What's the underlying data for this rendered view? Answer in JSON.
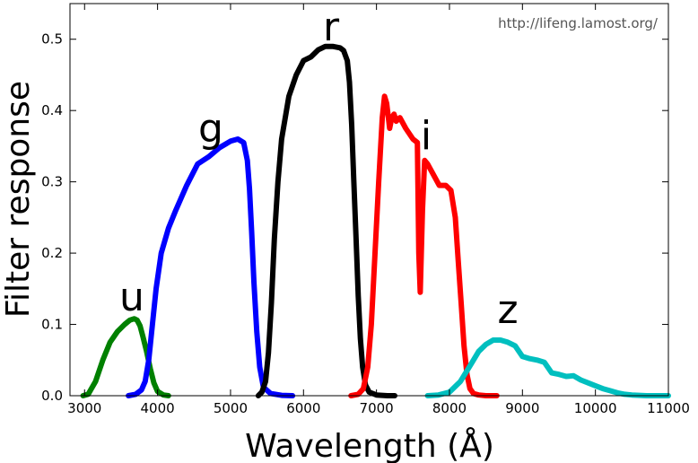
{
  "chart_data": {
    "type": "line",
    "title": "",
    "watermark": "http://lifeng.lamost.org/",
    "xlabel": "Wavelength (Å)",
    "ylabel": "Filter response",
    "xlim": [
      2800,
      11000
    ],
    "ylim": [
      0,
      0.55
    ],
    "x_ticks": [
      3000,
      4000,
      5000,
      6000,
      7000,
      8000,
      9000,
      10000,
      11000
    ],
    "y_ticks": [
      0.0,
      0.1,
      0.2,
      0.3,
      0.4,
      0.5
    ],
    "grid": false,
    "series": [
      {
        "name": "u",
        "color": "#008000",
        "x": [
          2980,
          3050,
          3150,
          3250,
          3350,
          3450,
          3550,
          3620,
          3680,
          3720,
          3760,
          3800,
          3850,
          3900,
          3950,
          4000,
          4080,
          4150
        ],
        "y": [
          0.0,
          0.002,
          0.02,
          0.05,
          0.075,
          0.09,
          0.1,
          0.106,
          0.108,
          0.106,
          0.098,
          0.083,
          0.062,
          0.038,
          0.018,
          0.006,
          0.001,
          0.0
        ]
      },
      {
        "name": "g",
        "color": "#0000ff",
        "x": [
          3600,
          3700,
          3780,
          3830,
          3880,
          3930,
          3980,
          4050,
          4150,
          4250,
          4400,
          4550,
          4700,
          4850,
          5000,
          5100,
          5180,
          5230,
          5260,
          5290,
          5320,
          5360,
          5400,
          5450,
          5550,
          5700,
          5850
        ],
        "y": [
          0.0,
          0.002,
          0.008,
          0.02,
          0.05,
          0.1,
          0.15,
          0.2,
          0.235,
          0.26,
          0.295,
          0.325,
          0.335,
          0.348,
          0.357,
          0.36,
          0.355,
          0.33,
          0.29,
          0.23,
          0.16,
          0.09,
          0.04,
          0.012,
          0.003,
          0.0005,
          0.0
        ]
      },
      {
        "name": "r",
        "color": "#000000",
        "x": [
          5380,
          5430,
          5480,
          5520,
          5560,
          5600,
          5650,
          5700,
          5800,
          5900,
          6000,
          6100,
          6200,
          6300,
          6400,
          6500,
          6550,
          6600,
          6630,
          6660,
          6690,
          6720,
          6750,
          6780,
          6810,
          6850,
          6900,
          7000,
          7150,
          7250
        ],
        "y": [
          0.0,
          0.005,
          0.02,
          0.06,
          0.13,
          0.22,
          0.3,
          0.36,
          0.42,
          0.45,
          0.47,
          0.475,
          0.485,
          0.49,
          0.49,
          0.488,
          0.484,
          0.47,
          0.44,
          0.38,
          0.3,
          0.22,
          0.14,
          0.08,
          0.04,
          0.015,
          0.005,
          0.001,
          0.0,
          0.0
        ]
      },
      {
        "name": "i",
        "color": "#ff0000",
        "x": [
          6650,
          6750,
          6820,
          6880,
          6930,
          6980,
          7030,
          7080,
          7110,
          7140,
          7180,
          7210,
          7240,
          7270,
          7320,
          7400,
          7500,
          7560,
          7580,
          7600,
          7630,
          7660,
          7700,
          7780,
          7860,
          7950,
          8020,
          8080,
          8120,
          8160,
          8200,
          8240,
          8280,
          8330,
          8400,
          8500,
          8650
        ],
        "y": [
          0.0,
          0.002,
          0.01,
          0.04,
          0.1,
          0.2,
          0.3,
          0.39,
          0.42,
          0.41,
          0.375,
          0.39,
          0.395,
          0.385,
          0.39,
          0.375,
          0.36,
          0.355,
          0.2,
          0.145,
          0.26,
          0.33,
          0.325,
          0.31,
          0.295,
          0.295,
          0.288,
          0.25,
          0.19,
          0.13,
          0.07,
          0.03,
          0.01,
          0.003,
          0.001,
          0.0,
          0.0
        ]
      },
      {
        "name": "z",
        "color": "#00bfbf",
        "x": [
          7700,
          7850,
          8000,
          8150,
          8300,
          8400,
          8500,
          8600,
          8700,
          8800,
          8900,
          9000,
          9100,
          9200,
          9300,
          9400,
          9500,
          9600,
          9700,
          9800,
          9900,
          10000,
          10100,
          10200,
          10300,
          10400,
          10500,
          10600,
          10700,
          10800,
          10900,
          11000
        ],
        "y": [
          0.0,
          0.001,
          0.005,
          0.02,
          0.045,
          0.062,
          0.072,
          0.078,
          0.078,
          0.075,
          0.07,
          0.055,
          0.052,
          0.05,
          0.047,
          0.032,
          0.03,
          0.027,
          0.028,
          0.022,
          0.018,
          0.014,
          0.01,
          0.007,
          0.004,
          0.002,
          0.001,
          0.0005,
          0.0,
          0.0,
          0.0,
          0.0
        ]
      }
    ]
  }
}
